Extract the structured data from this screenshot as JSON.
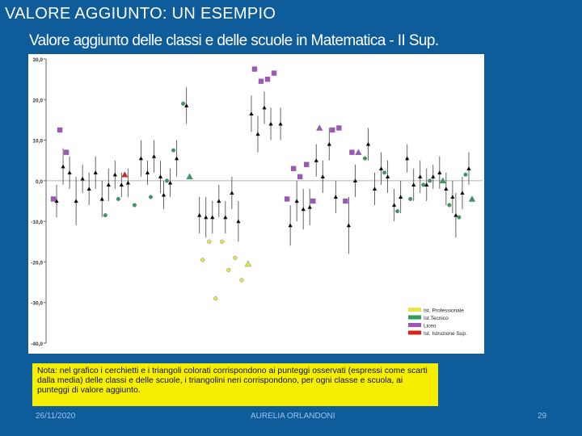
{
  "slide": {
    "title": "VALORE AGGIUNTO: UN ESEMPIO",
    "chart_title": "Valore aggiunto delle classi e delle scuole in Matematica - II Sup.",
    "note": "Nota: nel grafico i cerchietti e i triangoli colorati corrispondono ai punteggi osservati (espressi come scarti dalla media) delle classi e delle scuole, i triangolini neri corrispondono, per ogni classe e scuola, ai punteggi di valore aggiunto.",
    "footer": {
      "date": "26/11/2020",
      "author": "AURELIA ORLANDONI",
      "page": "29"
    }
  },
  "colors": {
    "background": "#0e5c9a",
    "note_background": "#f5ee00",
    "professionale": "#e8e840",
    "tecnico": "#2e9e5e",
    "liceo": "#9b59b6",
    "istruzione_superiore": "#e02020",
    "value_added_marker": "#000000",
    "error_bar": "#555555"
  },
  "chart_data": {
    "type": "scatter",
    "title": "Valore aggiunto delle classi e delle scuole in Matematica - II Sup.",
    "xlabel": "",
    "ylabel": "",
    "ylim": [
      -40,
      30
    ],
    "yticks": [
      "30,0",
      "20,0",
      "10,0",
      "0,0",
      "-10,0",
      "-20,0",
      "-30,0",
      "-40,0"
    ],
    "ytick_values": [
      30,
      20,
      10,
      0,
      -10,
      -20,
      -30,
      -40
    ],
    "grid": false,
    "legend_position": "bottom-right",
    "legend": [
      {
        "label": "Ist. Professionale",
        "color": "#e8e840"
      },
      {
        "label": "Ist.Tecnico",
        "color": "#2e9e5e"
      },
      {
        "label": "Liceo",
        "color": "#9b59b6"
      },
      {
        "label": "Ist. Istruzione Sup.",
        "color": "#e02020"
      }
    ],
    "series": [
      {
        "name": "Liceo",
        "color": "#9b59b6",
        "points": [
          {
            "x": 1,
            "y": -4.5,
            "shape": "square"
          },
          {
            "x": 3,
            "y": 12.5,
            "shape": "square"
          },
          {
            "x": 5,
            "y": 7,
            "shape": "square"
          },
          {
            "x": 63,
            "y": 27.5,
            "shape": "square"
          },
          {
            "x": 65,
            "y": 24.5,
            "shape": "square"
          },
          {
            "x": 67,
            "y": 25,
            "shape": "square"
          },
          {
            "x": 69,
            "y": 26.5,
            "shape": "square"
          },
          {
            "x": 73,
            "y": -4.5,
            "shape": "square"
          },
          {
            "x": 75,
            "y": 3,
            "shape": "square"
          },
          {
            "x": 77,
            "y": 1,
            "shape": "square"
          },
          {
            "x": 79,
            "y": 4,
            "shape": "square"
          },
          {
            "x": 81,
            "y": -5,
            "shape": "square"
          },
          {
            "x": 83,
            "y": 13,
            "shape": "triangle"
          },
          {
            "x": 87,
            "y": 12.5,
            "shape": "square"
          },
          {
            "x": 89,
            "y": 13,
            "shape": "square"
          },
          {
            "x": 91,
            "y": -5,
            "shape": "square"
          },
          {
            "x": 93,
            "y": 7,
            "shape": "square"
          },
          {
            "x": 95,
            "y": 7,
            "shape": "triangle"
          }
        ]
      },
      {
        "name": "Ist.Tecnico",
        "color": "#2e9e5e",
        "points": [
          {
            "x": 17,
            "y": -8.5,
            "shape": "circle"
          },
          {
            "x": 21,
            "y": -4.5,
            "shape": "circle"
          },
          {
            "x": 26,
            "y": -6,
            "shape": "circle"
          },
          {
            "x": 31,
            "y": -4,
            "shape": "circle"
          },
          {
            "x": 36,
            "y": 0,
            "shape": "circle"
          },
          {
            "x": 38,
            "y": 7.5,
            "shape": "circle"
          },
          {
            "x": 41,
            "y": 19,
            "shape": "circle"
          },
          {
            "x": 43,
            "y": 1,
            "shape": "triangle"
          },
          {
            "x": 97,
            "y": 5.5,
            "shape": "circle"
          },
          {
            "x": 103,
            "y": 2,
            "shape": "circle"
          },
          {
            "x": 107,
            "y": -7.5,
            "shape": "circle"
          },
          {
            "x": 111,
            "y": -4.5,
            "shape": "circle"
          },
          {
            "x": 115,
            "y": -1,
            "shape": "circle"
          },
          {
            "x": 117,
            "y": 0,
            "shape": "circle"
          },
          {
            "x": 121,
            "y": 0,
            "shape": "triangle"
          },
          {
            "x": 123,
            "y": -6,
            "shape": "circle"
          },
          {
            "x": 126,
            "y": -9,
            "shape": "circle"
          },
          {
            "x": 128,
            "y": 1.5,
            "shape": "circle"
          },
          {
            "x": 130,
            "y": -4.5,
            "shape": "triangle"
          }
        ]
      },
      {
        "name": "Ist. Professionale",
        "color": "#e8e840",
        "points": [
          {
            "x": 47,
            "y": -19.5,
            "shape": "circle"
          },
          {
            "x": 49,
            "y": -15,
            "shape": "circle"
          },
          {
            "x": 51,
            "y": -29,
            "shape": "circle"
          },
          {
            "x": 53,
            "y": -15,
            "shape": "circle"
          },
          {
            "x": 55,
            "y": -22,
            "shape": "circle"
          },
          {
            "x": 57,
            "y": -19,
            "shape": "circle"
          },
          {
            "x": 59,
            "y": -24.5,
            "shape": "circle"
          },
          {
            "x": 61,
            "y": -20.5,
            "shape": "triangle"
          }
        ]
      },
      {
        "name": "Ist. Istruzione Sup.",
        "color": "#e02020",
        "points": [
          {
            "x": 23,
            "y": 1.5,
            "shape": "triangle"
          }
        ]
      },
      {
        "name": "",
        "color": "#000000",
        "marker": "triangle",
        "points": [
          {
            "x": 2,
            "y": -5,
            "lo": -9,
            "hi": -1
          },
          {
            "x": 4,
            "y": 3.5,
            "lo": -1,
            "hi": 8
          },
          {
            "x": 6,
            "y": 2,
            "lo": -2,
            "hi": 6
          },
          {
            "x": 8,
            "y": -5,
            "lo": -11,
            "hi": 1
          },
          {
            "x": 10,
            "y": 0.5,
            "lo": -3,
            "hi": 4
          },
          {
            "x": 12,
            "y": -2,
            "lo": -6,
            "hi": 2
          },
          {
            "x": 14,
            "y": 2,
            "lo": -2,
            "hi": 6
          },
          {
            "x": 16,
            "y": -4.5,
            "lo": -9,
            "hi": 0
          },
          {
            "x": 18,
            "y": -1,
            "lo": -5,
            "hi": 3
          },
          {
            "x": 20,
            "y": 1.5,
            "lo": -2,
            "hi": 5
          },
          {
            "x": 22,
            "y": -1,
            "lo": -4,
            "hi": 2
          },
          {
            "x": 24,
            "y": -0.5,
            "lo": -4,
            "hi": 3
          },
          {
            "x": 28,
            "y": 5.5,
            "lo": 1,
            "hi": 10
          },
          {
            "x": 30,
            "y": 2,
            "lo": -1,
            "hi": 5
          },
          {
            "x": 32,
            "y": 6,
            "lo": 2,
            "hi": 10
          },
          {
            "x": 34,
            "y": 1,
            "lo": -3,
            "hi": 5
          },
          {
            "x": 35,
            "y": -3.5,
            "lo": -7,
            "hi": 0
          },
          {
            "x": 37,
            "y": -0.5,
            "lo": -4,
            "hi": 3
          },
          {
            "x": 39,
            "y": 5.5,
            "lo": 1,
            "hi": 10
          },
          {
            "x": 42,
            "y": 18.5,
            "lo": 14,
            "hi": 23
          },
          {
            "x": 46,
            "y": -8.5,
            "lo": -13,
            "hi": -4
          },
          {
            "x": 48,
            "y": -9,
            "lo": -14,
            "hi": -4
          },
          {
            "x": 50,
            "y": -9,
            "lo": -13,
            "hi": -5
          },
          {
            "x": 52,
            "y": -5,
            "lo": -9,
            "hi": -1
          },
          {
            "x": 54,
            "y": -9,
            "lo": -13,
            "hi": -5
          },
          {
            "x": 56,
            "y": -3,
            "lo": -7,
            "hi": 1
          },
          {
            "x": 58,
            "y": -10,
            "lo": -15,
            "hi": -5
          },
          {
            "x": 62,
            "y": 16.5,
            "lo": 12,
            "hi": 21
          },
          {
            "x": 64,
            "y": 11.5,
            "lo": 7,
            "hi": 16
          },
          {
            "x": 66,
            "y": 18,
            "lo": 14,
            "hi": 22
          },
          {
            "x": 68,
            "y": 14,
            "lo": 10,
            "hi": 18
          },
          {
            "x": 71,
            "y": 14,
            "lo": 10,
            "hi": 18
          },
          {
            "x": 74,
            "y": -11,
            "lo": -16,
            "hi": -6
          },
          {
            "x": 76,
            "y": -5,
            "lo": -10,
            "hi": 0
          },
          {
            "x": 78,
            "y": -7,
            "lo": -12,
            "hi": -2
          },
          {
            "x": 80,
            "y": -6.5,
            "lo": -11,
            "hi": -2
          },
          {
            "x": 82,
            "y": 5,
            "lo": 1,
            "hi": 9
          },
          {
            "x": 84,
            "y": 1,
            "lo": -3,
            "hi": 5
          },
          {
            "x": 86,
            "y": 9,
            "lo": 5,
            "hi": 13
          },
          {
            "x": 88,
            "y": -4,
            "lo": -8,
            "hi": 0
          },
          {
            "x": 92,
            "y": -11,
            "lo": -18,
            "hi": -4
          },
          {
            "x": 94,
            "y": 0,
            "lo": -4,
            "hi": 4
          },
          {
            "x": 98,
            "y": 9,
            "lo": 5,
            "hi": 13
          },
          {
            "x": 100,
            "y": -2,
            "lo": -6,
            "hi": 2
          },
          {
            "x": 102,
            "y": 3,
            "lo": -1,
            "hi": 7
          },
          {
            "x": 104,
            "y": 1,
            "lo": -3,
            "hi": 5
          },
          {
            "x": 106,
            "y": -6,
            "lo": -10,
            "hi": -2
          },
          {
            "x": 108,
            "y": -4,
            "lo": -8,
            "hi": 0
          },
          {
            "x": 110,
            "y": 5.5,
            "lo": 2,
            "hi": 9
          },
          {
            "x": 112,
            "y": -1,
            "lo": -5,
            "hi": 3
          },
          {
            "x": 114,
            "y": 1,
            "lo": -3,
            "hi": 5
          },
          {
            "x": 116,
            "y": -1,
            "lo": -5,
            "hi": 3
          },
          {
            "x": 118,
            "y": 1,
            "lo": -2,
            "hi": 4
          },
          {
            "x": 120,
            "y": 2,
            "lo": -2,
            "hi": 6
          },
          {
            "x": 122,
            "y": -2,
            "lo": -6,
            "hi": 2
          },
          {
            "x": 124,
            "y": -4,
            "lo": -8,
            "hi": 0
          },
          {
            "x": 125,
            "y": -8.5,
            "lo": -14,
            "hi": -3
          },
          {
            "x": 127,
            "y": -3,
            "lo": -7,
            "hi": 1
          },
          {
            "x": 129,
            "y": 3,
            "lo": -1,
            "hi": 7
          }
        ]
      }
    ]
  }
}
